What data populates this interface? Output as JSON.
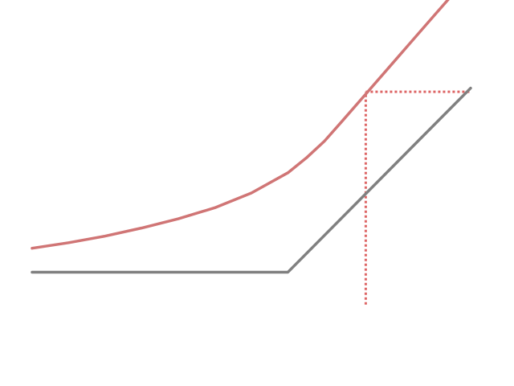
{
  "chart_data": {
    "type": "line",
    "title": "",
    "xlabel": "",
    "ylabel": "",
    "xlim": [
      0,
      12
    ],
    "ylim": [
      -1,
      8
    ],
    "grid": false,
    "legend": "none",
    "series": [
      {
        "name": "",
        "color": "#808080",
        "style": "solid",
        "x": [
          0,
          7,
          12
        ],
        "y": [
          1,
          1,
          6
        ]
      },
      {
        "name": "",
        "color": "#d07575",
        "style": "solid",
        "x": [
          0,
          1,
          2,
          3,
          4,
          5,
          6,
          7,
          7.5,
          8,
          8.5,
          9,
          10,
          11,
          12
        ],
        "y": [
          1.65,
          1.8,
          1.98,
          2.2,
          2.45,
          2.75,
          3.15,
          3.7,
          4.1,
          4.56,
          5.12,
          5.69,
          6.83,
          7.97,
          9.1
        ]
      }
    ],
    "annotations": [
      {
        "name": "",
        "color": "#dd6666",
        "style": "dotted",
        "x": [
          9.13,
          9.13
        ],
        "y": [
          0.12,
          5.9
        ]
      },
      {
        "name": "",
        "color": "#dd6666",
        "style": "dotted",
        "x": [
          9.13,
          12
        ],
        "y": [
          5.9,
          5.9
        ]
      }
    ]
  }
}
